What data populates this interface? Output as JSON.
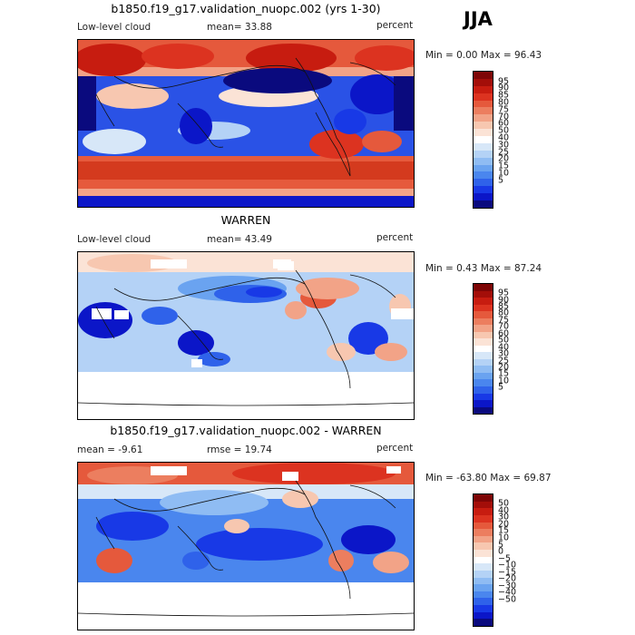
{
  "season": "JJA",
  "colors": {
    "abs_scale": [
      "#0a0a7e",
      "#0b16c8",
      "#1839e6",
      "#2f62ea",
      "#4a86ee",
      "#6aa3f0",
      "#8fbcf3",
      "#b4d2f6",
      "#d7e7f8",
      "#ffffff",
      "#fbe3d6",
      "#f7c7b0",
      "#f2a387",
      "#ec7e5f",
      "#e5593c",
      "#dc3320",
      "#c71c10",
      "#a30e09",
      "#7e0606"
    ],
    "diff_scale": [
      "#0a0a7e",
      "#0b16c8",
      "#1839e6",
      "#2f62ea",
      "#4a86ee",
      "#6aa3f0",
      "#8fbcf3",
      "#b4d2f6",
      "#d7e7f8",
      "#ffffff",
      "#fbe3d6",
      "#f7c7b0",
      "#f2a387",
      "#ec7e5f",
      "#e5593c",
      "#dc3320",
      "#c71c10",
      "#a30e09",
      "#7e0606"
    ]
  },
  "panels": [
    {
      "title": "b1850.f19_g17.validation_nuopc.002 (yrs 1-30)",
      "left_label": "Low-level cloud",
      "mid_label": "mean=  33.88",
      "right_label": "percent",
      "min_max": "Min =    0.00  Max =   96.43",
      "colorbar_labels": [
        "95",
        "90",
        "85",
        "80",
        "75",
        "70",
        "60",
        "50",
        "40",
        "30",
        "25",
        "20",
        "15",
        "10",
        "5"
      ]
    },
    {
      "title": "WARREN",
      "left_label": "Low-level cloud",
      "mid_label": "mean=  43.49",
      "right_label": "percent",
      "min_max": "Min =    0.43  Max =   87.24",
      "colorbar_labels": [
        "95",
        "90",
        "85",
        "80",
        "75",
        "70",
        "60",
        "50",
        "40",
        "30",
        "25",
        "20",
        "15",
        "10",
        "5"
      ]
    },
    {
      "title": "b1850.f19_g17.validation_nuopc.002 - WARREN",
      "left_label": "mean =   -9.61",
      "mid_label": "rmse =   19.74",
      "right_label": "percent",
      "min_max": "Min = -63.80  Max =   69.87",
      "colorbar_labels": [
        "50",
        "40",
        "30",
        "20",
        "15",
        "10",
        "5",
        "0",
        "−5",
        "−10",
        "−15",
        "−20",
        "−30",
        "−40",
        "−50"
      ]
    }
  ]
}
